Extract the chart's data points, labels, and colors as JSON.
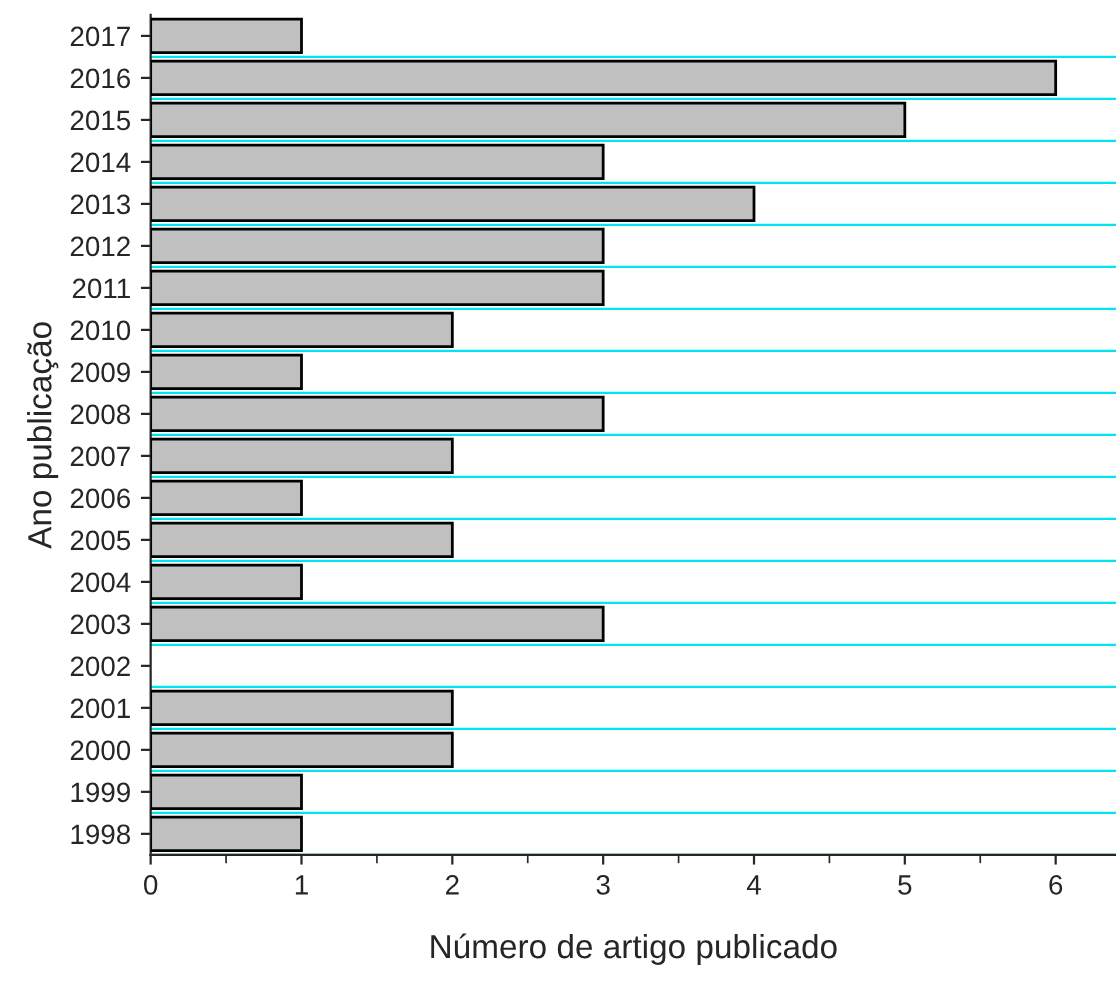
{
  "chart_data": {
    "type": "bar",
    "orientation": "horizontal",
    "xlabel": "Número de artigo publicado",
    "ylabel": "Ano publicação",
    "categories": [
      "2017",
      "2016",
      "2015",
      "2014",
      "2013",
      "2012",
      "2011",
      "2010",
      "2009",
      "2008",
      "2007",
      "2006",
      "2005",
      "2004",
      "2003",
      "2002",
      "2001",
      "2000",
      "1999",
      "1998"
    ],
    "values": [
      1,
      6,
      5,
      3,
      4,
      3,
      3,
      2,
      1,
      3,
      2,
      1,
      2,
      1,
      3,
      null,
      2,
      2,
      1,
      1
    ],
    "color": "#c0c0c0",
    "xlim": [
      0,
      6.4
    ],
    "xticks": [
      0,
      1,
      2,
      3,
      4,
      5,
      6
    ],
    "grid": "y",
    "legend": false
  }
}
